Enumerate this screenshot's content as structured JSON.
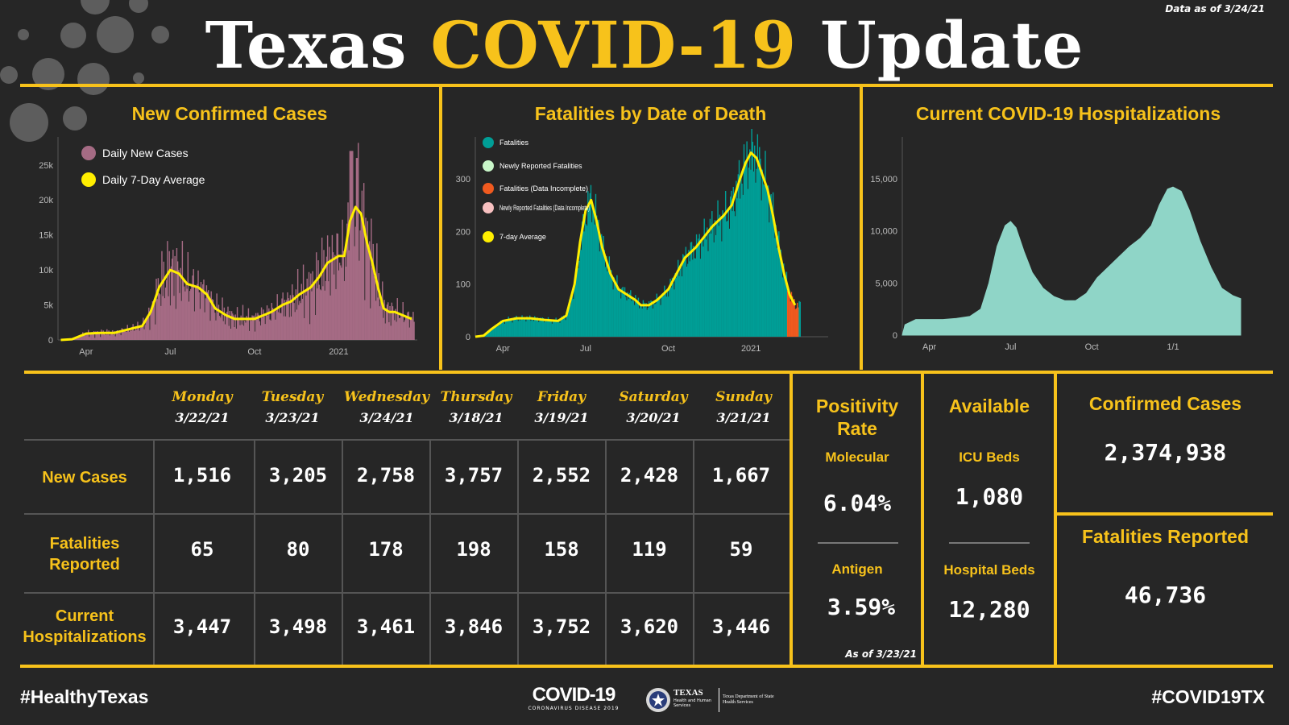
{
  "header": {
    "title_part1": "Texas",
    "title_part2": "COVID-19",
    "title_part3": "Update",
    "data_asof": "Data as of 3/24/21",
    "accent_color": "#f7c21b"
  },
  "panels": {
    "cases_title": "New Confirmed Cases",
    "fatalities_title": "Fatalities by Date of Death",
    "hosp_title": "Current COVID-19 Hospitalizations"
  },
  "chart_data": [
    {
      "type": "bar",
      "title": "New Confirmed Cases",
      "legend": [
        "Daily New Cases",
        "Daily 7-Day Average"
      ],
      "legend_placement": "top-left",
      "colors": {
        "bars": "#a56b84",
        "line": "#ffee00"
      },
      "y_ticks": [
        {
          "label": "0",
          "value": 0
        },
        {
          "label": "5k",
          "value": 5000
        },
        {
          "label": "10k",
          "value": 10000
        },
        {
          "label": "15k",
          "value": 15000
        },
        {
          "label": "20k",
          "value": 20000
        },
        {
          "label": "25k",
          "value": 25000
        }
      ],
      "x_ticks": [
        {
          "label": "Apr",
          "month": 1.0
        },
        {
          "label": "Jul",
          "month": 4.0
        },
        {
          "label": "Oct",
          "month": 7.0
        },
        {
          "label": "2021",
          "month": 10.0
        }
      ],
      "ylim": [
        0,
        29000
      ],
      "xlim": [
        0,
        12.8
      ],
      "x_months_from": "2020-03-01",
      "avg_points": [
        [
          0.1,
          0
        ],
        [
          0.5,
          100
        ],
        [
          1,
          900
        ],
        [
          1.5,
          1000
        ],
        [
          2,
          1000
        ],
        [
          2.5,
          1500
        ],
        [
          3,
          2000
        ],
        [
          3.3,
          4000
        ],
        [
          3.6,
          7500
        ],
        [
          4.0,
          10000
        ],
        [
          4.3,
          9500
        ],
        [
          4.6,
          8000
        ],
        [
          5.0,
          7500
        ],
        [
          5.3,
          6500
        ],
        [
          5.6,
          4500
        ],
        [
          6.0,
          3500
        ],
        [
          6.3,
          3000
        ],
        [
          6.6,
          3000
        ],
        [
          7.0,
          3000
        ],
        [
          7.3,
          3500
        ],
        [
          7.6,
          4000
        ],
        [
          8.0,
          5000
        ],
        [
          8.3,
          5500
        ],
        [
          8.6,
          6500
        ],
        [
          9.0,
          7500
        ],
        [
          9.3,
          9000
        ],
        [
          9.6,
          11000
        ],
        [
          10.0,
          12000
        ],
        [
          10.2,
          12000
        ],
        [
          10.4,
          17000
        ],
        [
          10.6,
          19000
        ],
        [
          10.8,
          18000
        ],
        [
          11.0,
          14000
        ],
        [
          11.2,
          11000
        ],
        [
          11.4,
          7500
        ],
        [
          11.6,
          4500
        ],
        [
          11.8,
          4000
        ],
        [
          12.0,
          4000
        ],
        [
          12.3,
          3500
        ],
        [
          12.6,
          3000
        ]
      ],
      "daily_peak_note": "bars fluctuate around the average; max daily bar approx 27000 in Jan 2021"
    },
    {
      "type": "bar",
      "title": "Fatalities by Date of Death",
      "legend": [
        "Fatalities",
        "Newly Reported Fatalities",
        "Fatalities (Data Incomplete)",
        "Newly Reported Fatalities (Data Incomplete)",
        "7-day Average"
      ],
      "legend_placement": "top-left",
      "colors": {
        "Fatalities": "#009e96",
        "Newly Reported Fatalities": "#c8f5c8",
        "Fatalities (Data Incomplete)": "#f05a1f",
        "Newly Reported Fatalities (Data Incomplete)": "#f7c0c0",
        "7-day Average": "#ffee00"
      },
      "y_ticks": [
        {
          "label": "0",
          "value": 0
        },
        {
          "label": "100",
          "value": 100
        },
        {
          "label": "200",
          "value": 200
        },
        {
          "label": "300",
          "value": 300
        }
      ],
      "x_ticks": [
        {
          "label": "Apr",
          "month": 1.0
        },
        {
          "label": "Jul",
          "month": 4.0
        },
        {
          "label": "Oct",
          "month": 7.0
        },
        {
          "label": "2021",
          "month": 10.0
        }
      ],
      "ylim": [
        0,
        380
      ],
      "xlim": [
        0,
        12.8
      ],
      "x_months_from": "2020-03-01",
      "avg_points": [
        [
          0,
          0
        ],
        [
          0.3,
          2
        ],
        [
          0.6,
          15
        ],
        [
          1,
          30
        ],
        [
          1.5,
          35
        ],
        [
          2,
          35
        ],
        [
          2.5,
          32
        ],
        [
          3,
          30
        ],
        [
          3.3,
          40
        ],
        [
          3.6,
          100
        ],
        [
          3.8,
          180
        ],
        [
          4.0,
          240
        ],
        [
          4.2,
          260
        ],
        [
          4.4,
          220
        ],
        [
          4.6,
          170
        ],
        [
          4.9,
          120
        ],
        [
          5.2,
          90
        ],
        [
          5.5,
          80
        ],
        [
          5.8,
          70
        ],
        [
          6.0,
          60
        ],
        [
          6.3,
          60
        ],
        [
          6.6,
          70
        ],
        [
          7.0,
          90
        ],
        [
          7.3,
          120
        ],
        [
          7.6,
          150
        ],
        [
          8.0,
          170
        ],
        [
          8.3,
          190
        ],
        [
          8.6,
          210
        ],
        [
          9.0,
          230
        ],
        [
          9.3,
          250
        ],
        [
          9.6,
          300
        ],
        [
          9.8,
          330
        ],
        [
          10.0,
          350
        ],
        [
          10.2,
          340
        ],
        [
          10.4,
          310
        ],
        [
          10.6,
          280
        ],
        [
          10.8,
          230
        ],
        [
          11.0,
          170
        ],
        [
          11.2,
          120
        ],
        [
          11.4,
          80
        ],
        [
          11.6,
          60
        ]
      ],
      "incomplete_range_months": [
        11.3,
        11.7
      ]
    },
    {
      "type": "area",
      "title": "Current COVID-19 Hospitalizations",
      "colors": {
        "area": "#8fd5c7"
      },
      "y_ticks": [
        {
          "label": "0",
          "value": 0
        },
        {
          "label": "5,000",
          "value": 5000
        },
        {
          "label": "10,000",
          "value": 10000
        },
        {
          "label": "15,000",
          "value": 15000
        }
      ],
      "x_ticks": [
        {
          "label": "Apr",
          "month": 1.0
        },
        {
          "label": "Jul",
          "month": 4.0
        },
        {
          "label": "Oct",
          "month": 7.0
        },
        {
          "label": "1/1",
          "month": 10.0
        }
      ],
      "ylim": [
        0,
        19000
      ],
      "xlim": [
        0,
        12.5
      ],
      "x_months_from": "2020-03-01",
      "points": [
        [
          0,
          0
        ],
        [
          0.1,
          1000
        ],
        [
          0.5,
          1500
        ],
        [
          1.0,
          1500
        ],
        [
          1.5,
          1500
        ],
        [
          2.0,
          1600
        ],
        [
          2.5,
          1800
        ],
        [
          2.9,
          2500
        ],
        [
          3.2,
          5000
        ],
        [
          3.5,
          8500
        ],
        [
          3.8,
          10500
        ],
        [
          4.0,
          10900
        ],
        [
          4.2,
          10300
        ],
        [
          4.5,
          8000
        ],
        [
          4.8,
          6000
        ],
        [
          5.2,
          4500
        ],
        [
          5.6,
          3700
        ],
        [
          6.0,
          3300
        ],
        [
          6.4,
          3300
        ],
        [
          6.8,
          4000
        ],
        [
          7.2,
          5500
        ],
        [
          7.6,
          6500
        ],
        [
          8.0,
          7500
        ],
        [
          8.4,
          8500
        ],
        [
          8.8,
          9300
        ],
        [
          9.2,
          10500
        ],
        [
          9.5,
          12500
        ],
        [
          9.8,
          14000
        ],
        [
          10.0,
          14200
        ],
        [
          10.3,
          13800
        ],
        [
          10.6,
          12000
        ],
        [
          11.0,
          9000
        ],
        [
          11.4,
          6500
        ],
        [
          11.8,
          4500
        ],
        [
          12.2,
          3800
        ],
        [
          12.5,
          3500
        ],
        [
          12.5,
          0
        ]
      ]
    }
  ],
  "table": {
    "days": [
      {
        "name": "Monday",
        "date": "3/22/21"
      },
      {
        "name": "Tuesday",
        "date": "3/23/21"
      },
      {
        "name": "Wednesday",
        "date": "3/24/21"
      },
      {
        "name": "Thursday",
        "date": "3/18/21"
      },
      {
        "name": "Friday",
        "date": "3/19/21"
      },
      {
        "name": "Saturday",
        "date": "3/20/21"
      },
      {
        "name": "Sunday",
        "date": "3/21/21"
      }
    ],
    "rows": [
      {
        "label": "New Cases",
        "values": [
          "1,516",
          "3,205",
          "2,758",
          "3,757",
          "2,552",
          "2,428",
          "1,667"
        ]
      },
      {
        "label": "Fatalities Reported",
        "values": [
          "65",
          "80",
          "178",
          "198",
          "158",
          "119",
          "59"
        ]
      },
      {
        "label": "Current Hospitalizations",
        "values": [
          "3,447",
          "3,498",
          "3,461",
          "3,846",
          "3,752",
          "3,620",
          "3,446"
        ]
      }
    ]
  },
  "positivity": {
    "title": "Positivity Rate",
    "molecular_label": "Molecular",
    "molecular_value": "6.04%",
    "antigen_label": "Antigen",
    "antigen_value": "3.59%",
    "asof": "As of 3/23/21"
  },
  "available": {
    "title": "Available",
    "icu_label": "ICU Beds",
    "icu_value": "1,080",
    "hospital_label": "Hospital Beds",
    "hospital_value": "12,280"
  },
  "totals": {
    "confirmed_label": "Confirmed Cases",
    "confirmed_value": "2,374,938",
    "fatalities_label": "Fatalities Reported",
    "fatalities_value": "46,736"
  },
  "footer": {
    "left_tag": "#HealthyTexas",
    "right_tag": "#COVID19TX",
    "covid_logo_text": "COVID-19",
    "covid_logo_sub": "CORONAVIRUS DISEASE 2019",
    "dshs_texas": "TEXAS",
    "dshs_hhs": "Health and Human Services",
    "dshs_name": "Texas Department of State Health Services"
  }
}
